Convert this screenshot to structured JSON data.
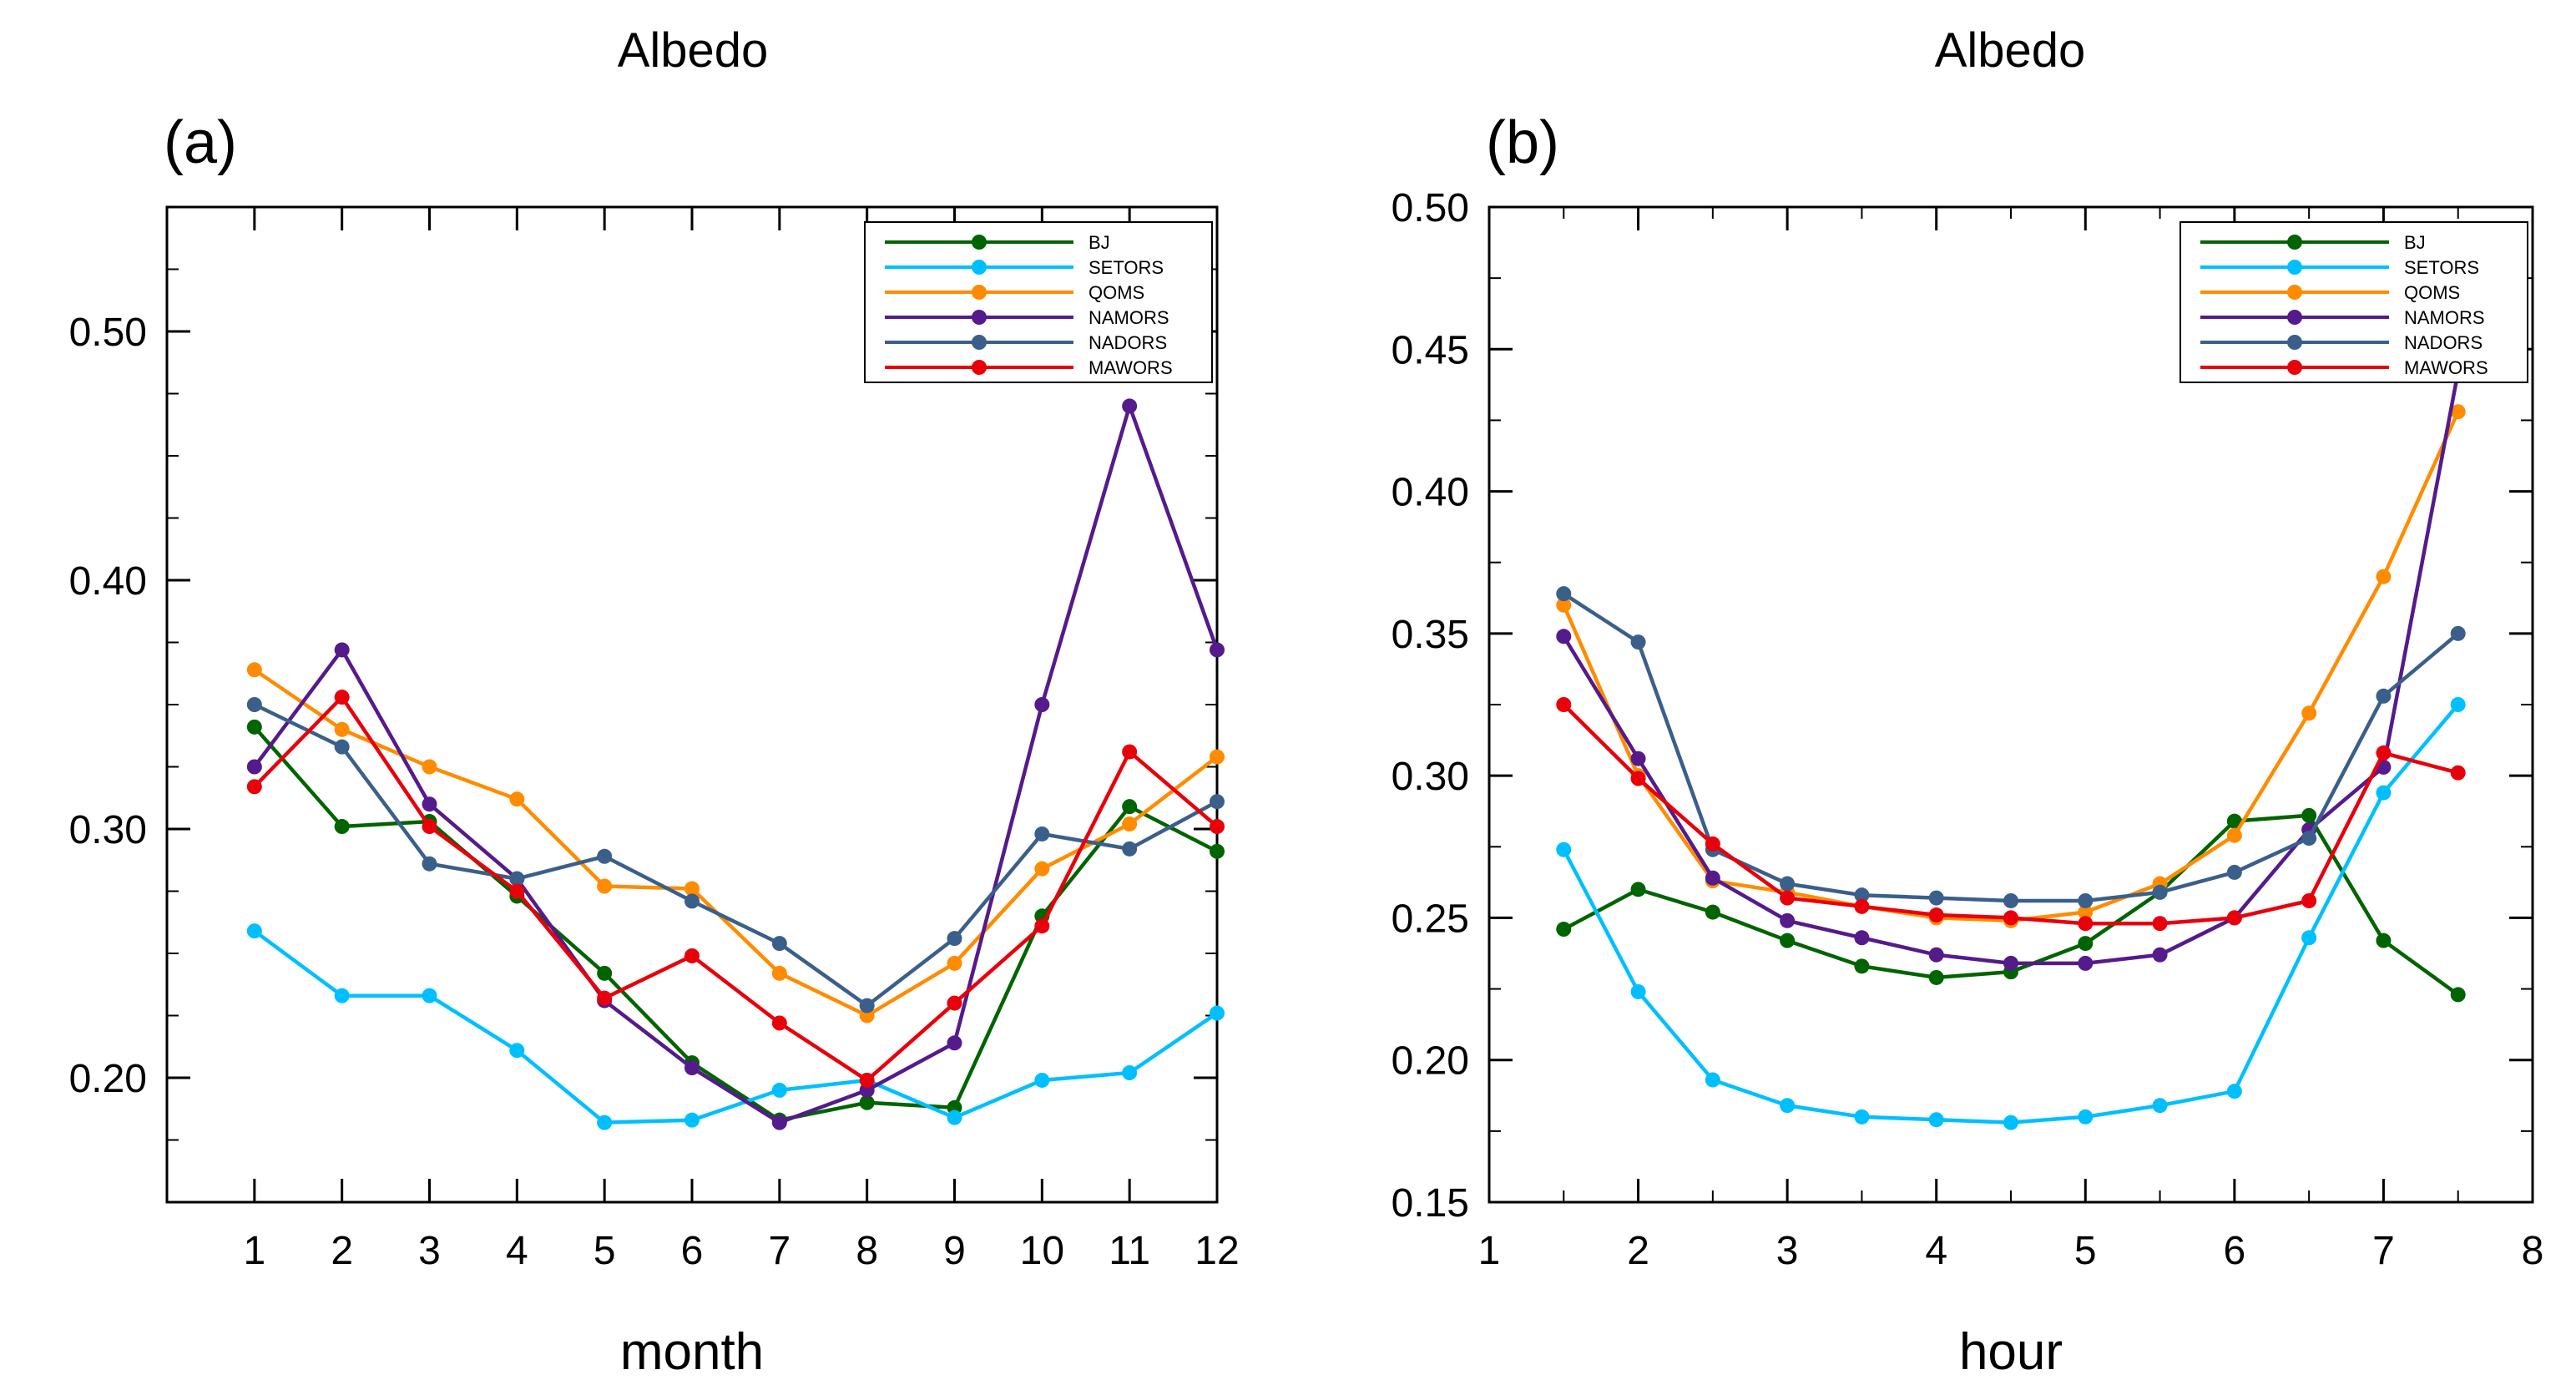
{
  "chart_data": [
    {
      "panel": "(a)",
      "type": "line",
      "title": "Albedo",
      "xlabel": "month",
      "ylabel": "",
      "xlim": [
        0,
        12
      ],
      "ylim": [
        0.15,
        0.55
      ],
      "x_ticks": [
        1,
        2,
        3,
        4,
        5,
        6,
        7,
        8,
        9,
        10,
        11,
        12
      ],
      "x_tick_labels": [
        "1",
        "2",
        "3",
        "4",
        "5",
        "6",
        "7",
        "8",
        "9",
        "10",
        "11",
        "12"
      ],
      "y_ticks": [
        0.2,
        0.3,
        0.4,
        0.5
      ],
      "y_tick_labels": [
        "0.20",
        "0.30",
        "0.40",
        "0.50"
      ],
      "legend_position": "top-right",
      "x": [
        1,
        2,
        3,
        4,
        5,
        6,
        7,
        8,
        9,
        10,
        11,
        12
      ],
      "series": [
        {
          "name": "BJ",
          "color": "#006400",
          "values": [
            0.341,
            0.301,
            0.303,
            0.273,
            0.242,
            0.206,
            0.183,
            0.19,
            0.188,
            0.265,
            0.309,
            0.291
          ]
        },
        {
          "name": "SETORS",
          "color": "#00BFFF",
          "values": [
            0.259,
            0.233,
            0.233,
            0.211,
            0.182,
            0.183,
            0.195,
            0.199,
            0.184,
            0.199,
            0.202,
            0.226
          ]
        },
        {
          "name": "QOMS",
          "color": "#FF8C00",
          "values": [
            0.364,
            0.34,
            0.325,
            0.312,
            0.277,
            0.276,
            0.242,
            0.225,
            0.246,
            0.284,
            0.302,
            0.329
          ]
        },
        {
          "name": "NAMORS",
          "color": "#551A8B",
          "values": [
            0.325,
            0.372,
            0.31,
            0.28,
            0.231,
            0.204,
            0.182,
            0.195,
            0.214,
            0.35,
            0.47,
            0.372
          ]
        },
        {
          "name": "NADORS",
          "color": "#3A5F8A",
          "values": [
            0.35,
            0.333,
            0.286,
            0.28,
            0.289,
            0.271,
            0.254,
            0.229,
            0.256,
            0.298,
            0.292,
            0.311
          ]
        },
        {
          "name": "MAWORS",
          "color": "#E8000B",
          "values": [
            0.317,
            0.353,
            0.301,
            0.275,
            0.232,
            0.249,
            0.222,
            0.199,
            0.23,
            0.261,
            0.331,
            0.301
          ]
        }
      ]
    },
    {
      "panel": "(b)",
      "type": "line",
      "title": "Albedo",
      "xlabel": "hour",
      "ylabel": "",
      "xlim": [
        1,
        8
      ],
      "ylim": [
        0.15,
        0.5
      ],
      "x_ticks": [
        1,
        2,
        3,
        4,
        5,
        6,
        7,
        8
      ],
      "x_tick_labels": [
        "1",
        "2",
        "3",
        "4",
        "5",
        "6",
        "7",
        "8"
      ],
      "y_ticks": [
        0.15,
        0.2,
        0.25,
        0.3,
        0.35,
        0.4,
        0.45,
        0.5
      ],
      "y_tick_labels": [
        "0.15",
        "0.20",
        "0.25",
        "0.30",
        "0.35",
        "0.40",
        "0.45",
        "0.50"
      ],
      "legend_position": "top-right",
      "x": [
        1.5,
        2,
        2.5,
        3,
        3.5,
        4,
        4.5,
        5,
        5.5,
        6,
        6.5,
        7,
        7.5
      ],
      "series": [
        {
          "name": "BJ",
          "color": "#006400",
          "values": [
            0.246,
            0.26,
            0.252,
            0.242,
            0.233,
            0.229,
            0.231,
            0.241,
            0.259,
            0.284,
            0.286,
            0.242,
            0.223
          ]
        },
        {
          "name": "SETORS",
          "color": "#00BFFF",
          "values": [
            0.274,
            0.224,
            0.193,
            0.184,
            0.18,
            0.179,
            0.178,
            0.18,
            0.184,
            0.189,
            0.243,
            0.294,
            0.325
          ]
        },
        {
          "name": "QOMS",
          "color": "#FF8C00",
          "values": [
            0.36,
            0.3,
            0.263,
            0.259,
            0.254,
            0.25,
            0.249,
            0.252,
            0.262,
            0.279,
            0.322,
            0.37,
            0.428
          ]
        },
        {
          "name": "NAMORS",
          "color": "#551A8B",
          "values": [
            0.349,
            0.306,
            0.264,
            0.249,
            0.243,
            0.237,
            0.234,
            0.234,
            0.237,
            0.25,
            0.281,
            0.303,
            0.442
          ]
        },
        {
          "name": "NADORS",
          "color": "#3A5F8A",
          "values": [
            0.364,
            0.347,
            0.274,
            0.262,
            0.258,
            0.257,
            0.256,
            0.256,
            0.259,
            0.266,
            0.278,
            0.328,
            0.35
          ]
        },
        {
          "name": "MAWORS",
          "color": "#E8000B",
          "values": [
            0.325,
            0.299,
            0.276,
            0.257,
            0.254,
            0.251,
            0.25,
            0.248,
            0.248,
            0.25,
            0.256,
            0.308,
            0.301
          ]
        }
      ]
    }
  ]
}
